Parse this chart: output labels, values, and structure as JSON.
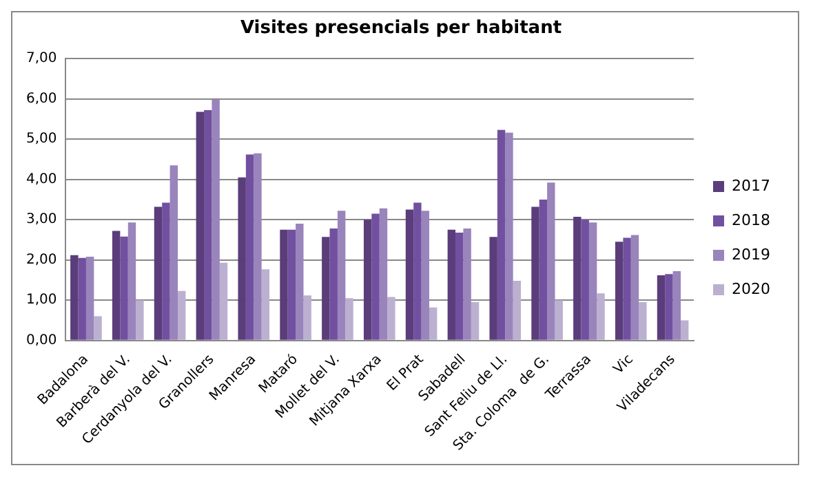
{
  "chart_data": {
    "type": "bar",
    "title": "Visites presencials per habitant",
    "categories": [
      "Badalona",
      "Barberà del V.",
      "Cerdanyola del V.",
      "Granollers",
      "Manresa",
      "Mataró",
      "Mollet del V.",
      "Mitjana Xarxa",
      "El Prat",
      "Sabadell",
      "Sant Feliu de Ll.",
      "Sta. Coloma  de G.",
      "Terrassa",
      "Vic",
      "Viladecans"
    ],
    "series": [
      {
        "name": "2017",
        "color": "#5a3d7a",
        "values": [
          2.12,
          2.72,
          3.32,
          5.68,
          4.05,
          2.75,
          2.57,
          3.0,
          3.25,
          2.75,
          2.57,
          3.32,
          3.07,
          2.45,
          1.62
        ]
      },
      {
        "name": "2018",
        "color": "#7150a0",
        "values": [
          2.05,
          2.58,
          3.42,
          5.72,
          4.62,
          2.75,
          2.78,
          3.15,
          3.42,
          2.68,
          5.23,
          3.5,
          3.0,
          2.55,
          1.65
        ]
      },
      {
        "name": "2019",
        "color": "#9a84bc",
        "values": [
          2.08,
          2.93,
          4.35,
          5.98,
          4.65,
          2.9,
          3.22,
          3.28,
          3.22,
          2.78,
          5.16,
          3.92,
          2.93,
          2.62,
          1.72
        ]
      },
      {
        "name": "2020",
        "color": "#bcb0d0",
        "values": [
          0.6,
          1.0,
          1.23,
          1.93,
          1.77,
          1.12,
          1.05,
          1.08,
          0.82,
          0.95,
          1.48,
          1.0,
          1.17,
          0.95,
          0.5
        ]
      }
    ],
    "ylim": [
      0,
      7
    ],
    "yticks": [
      {
        "value": 0,
        "label": "0,00"
      },
      {
        "value": 1,
        "label": "1,00"
      },
      {
        "value": 2,
        "label": "2,00"
      },
      {
        "value": 3,
        "label": "3,00"
      },
      {
        "value": 4,
        "label": "4,00"
      },
      {
        "value": 5,
        "label": "5,00"
      },
      {
        "value": 6,
        "label": "6,00"
      },
      {
        "value": 7,
        "label": "7,00"
      }
    ],
    "grid": "y",
    "legend": "right"
  }
}
